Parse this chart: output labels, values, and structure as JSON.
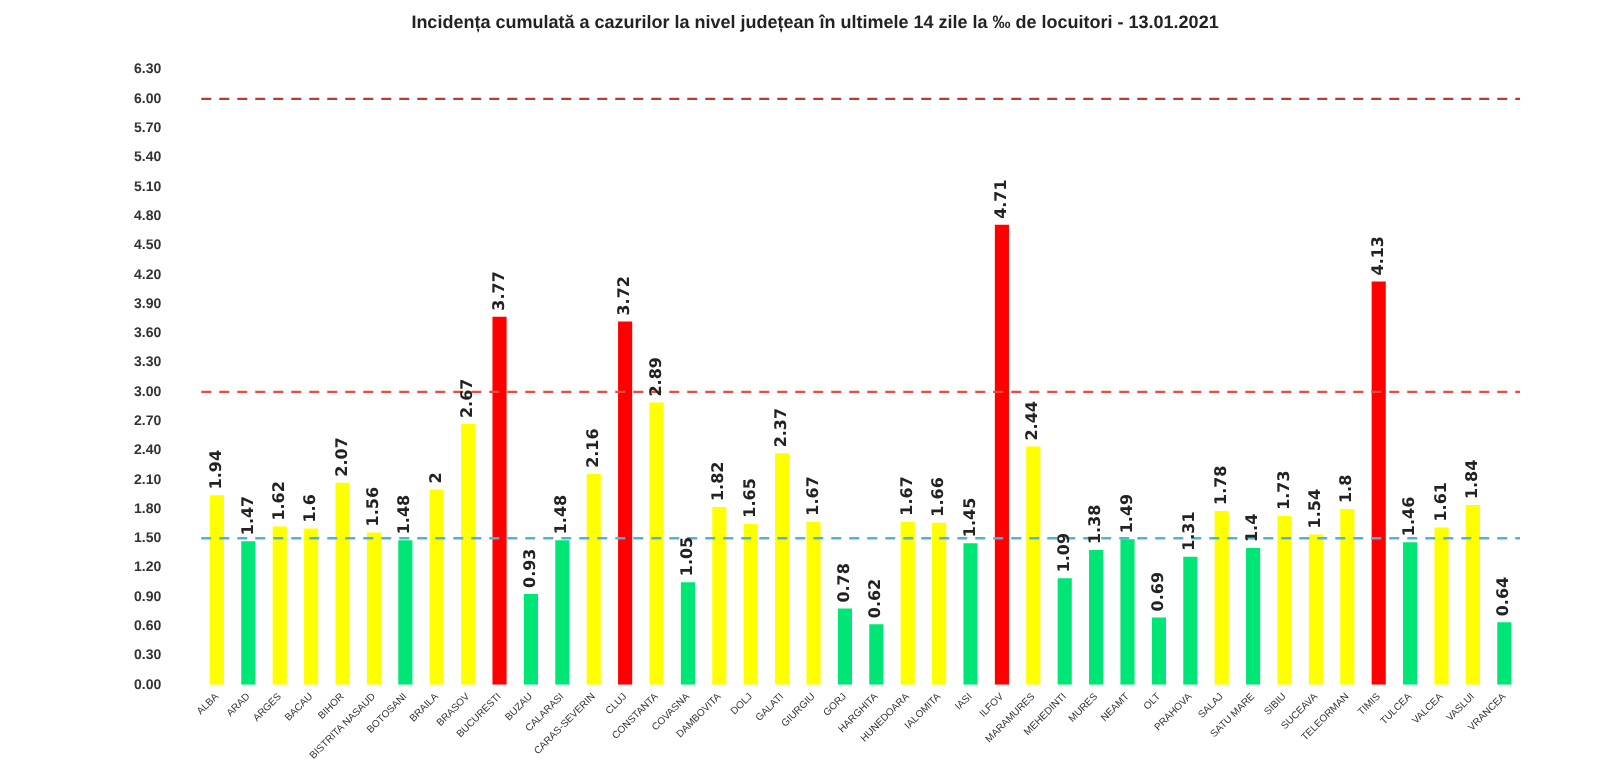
{
  "chart_data": {
    "type": "bar",
    "title": "Incidența cumulată a cazurilor la nivel județean în ultimele 14 zile la ‰ de locuitori - 13.01.2021",
    "categories": [
      "ALBA",
      "ARAD",
      "ARGES",
      "BACAU",
      "BIHOR",
      "BISTRITA NASAUD",
      "BOTOSANI",
      "BRAILA",
      "BRASOV",
      "BUCURESTI",
      "BUZAU",
      "CALARASI",
      "CARAS-SEVERIN",
      "CLUJ",
      "CONSTANTA",
      "COVASNA",
      "DAMBOVITA",
      "DOLJ",
      "GALATI",
      "GIURGIU",
      "GORJ",
      "HARGHITA",
      "HUNEDOARA",
      "IALOMITA",
      "IASI",
      "ILFOV",
      "MARAMURES",
      "MEHEDINTI",
      "MURES",
      "NEAMT",
      "OLT",
      "PRAHOVA",
      "SALAJ",
      "SATU MARE",
      "SIBIU",
      "SUCEAVA",
      "TELEORMAN",
      "TIMIS",
      "TULCEA",
      "VALCEA",
      "VASLUI",
      "VRANCEA"
    ],
    "values": [
      1.94,
      1.47,
      1.62,
      1.6,
      2.07,
      1.56,
      1.48,
      2,
      2.67,
      3.77,
      0.93,
      1.48,
      2.16,
      3.72,
      2.89,
      1.05,
      1.82,
      1.65,
      2.37,
      1.67,
      0.78,
      0.62,
      1.67,
      1.66,
      1.45,
      4.71,
      2.44,
      1.09,
      1.38,
      1.49,
      0.69,
      1.31,
      1.78,
      1.4,
      1.73,
      1.54,
      1.8,
      4.13,
      1.46,
      1.61,
      1.84,
      0.64
    ],
    "colors": [
      "#ffff00",
      "#00e676",
      "#ffff00",
      "#ffff00",
      "#ffff00",
      "#ffff00",
      "#00e676",
      "#ffff00",
      "#ffff00",
      "#ff0000",
      "#00e676",
      "#00e676",
      "#ffff00",
      "#ff0000",
      "#ffff00",
      "#00e676",
      "#ffff00",
      "#ffff00",
      "#ffff00",
      "#ffff00",
      "#00e676",
      "#00e676",
      "#ffff00",
      "#ffff00",
      "#00e676",
      "#ff0000",
      "#ffff00",
      "#00e676",
      "#00e676",
      "#00e676",
      "#00e676",
      "#00e676",
      "#ffff00",
      "#00e676",
      "#ffff00",
      "#ffff00",
      "#ffff00",
      "#ff0000",
      "#00e676",
      "#ffff00",
      "#ffff00",
      "#00e676"
    ],
    "ylim": [
      0,
      6.3
    ],
    "yticks": [
      {
        "value": 0,
        "label": "0.00"
      },
      {
        "value": 0.3,
        "label": "0.30"
      },
      {
        "value": 0.6,
        "label": "0.60"
      },
      {
        "value": 0.9,
        "label": "0.90"
      },
      {
        "value": 1.2,
        "label": "1.20"
      },
      {
        "value": 1.5,
        "label": "1.50"
      },
      {
        "value": 1.8,
        "label": "1.80"
      },
      {
        "value": 2.1,
        "label": "2.10"
      },
      {
        "value": 2.4,
        "label": "2.40"
      },
      {
        "value": 2.7,
        "label": "2.70"
      },
      {
        "value": 3,
        "label": "3.00"
      },
      {
        "value": 3.3,
        "label": "3.30"
      },
      {
        "value": 3.6,
        "label": "3.60"
      },
      {
        "value": 3.9,
        "label": "3.90"
      },
      {
        "value": 4.2,
        "label": "4.20"
      },
      {
        "value": 4.5,
        "label": "4.50"
      },
      {
        "value": 4.8,
        "label": "4.80"
      },
      {
        "value": 5.1,
        "label": "5.10"
      },
      {
        "value": 5.4,
        "label": "5.40"
      },
      {
        "value": 5.7,
        "label": "5.70"
      },
      {
        "value": 6,
        "label": "6.00"
      },
      {
        "value": 6.3,
        "label": "6.30"
      }
    ],
    "ref_lines": [
      {
        "axis": "y",
        "value": 6,
        "color": "#c0392b",
        "line_style": "dashed"
      },
      {
        "axis": "y",
        "value": 3,
        "color": "#e74c3c",
        "line_style": "dashed"
      },
      {
        "axis": "y",
        "value": 1.5,
        "color": "#4fb3d9",
        "line_style": "dashed"
      }
    ],
    "data_labels": true,
    "grid": false,
    "legend": false
  }
}
